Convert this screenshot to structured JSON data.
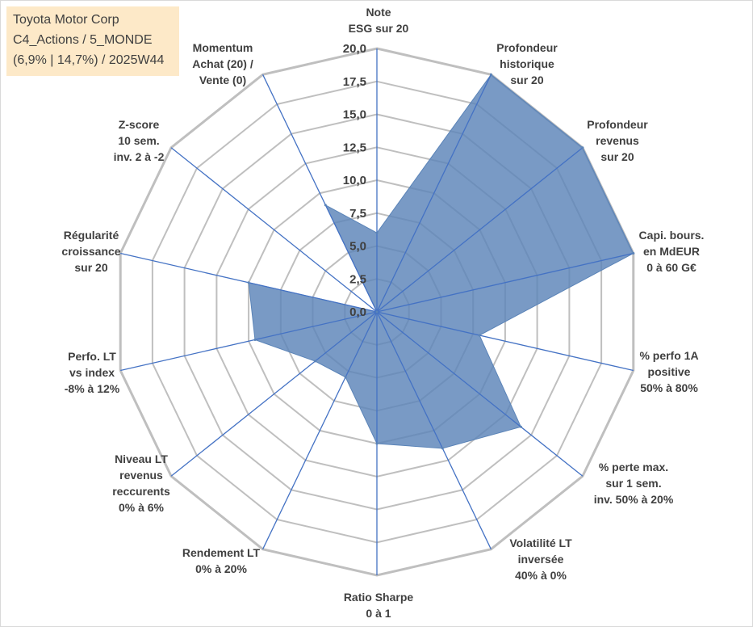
{
  "info": {
    "line1": "Toyota Motor Corp",
    "line2": "C4_Actions / 5_MONDE",
    "line3": "(6,9% | 14,7%) / 2025W44"
  },
  "colors": {
    "fill": "#5b84b8",
    "spoke": "#4472c4",
    "ring": "#bfbfbf",
    "text": "#404040",
    "info_bg": "#fde9c8"
  },
  "chart_data": {
    "type": "radar",
    "rmin": 0,
    "rmax": 20,
    "ticks": [
      "0,0",
      "2,5",
      "5,0",
      "7,5",
      "10,0",
      "12,5",
      "15,0",
      "17,5",
      "20,0"
    ],
    "axes": [
      {
        "lines": [
          "Note",
          "ESG sur 20"
        ],
        "value": 6.0
      },
      {
        "lines": [
          "Profondeur",
          "historique",
          "sur 20"
        ],
        "value": 20.0
      },
      {
        "lines": [
          "Profondeur",
          "revenus",
          "sur 20"
        ],
        "value": 20.0
      },
      {
        "lines": [
          "Capi. bours.",
          "en MdEUR",
          "0 à 60 G€"
        ],
        "value": 20.0
      },
      {
        "lines": [
          "% perfo 1A",
          "positive",
          "50% à 80%"
        ],
        "value": 8.0
      },
      {
        "lines": [
          "% perte max.",
          "sur 1 sem.",
          "inv. 50% à 20%"
        ],
        "value": 14.0
      },
      {
        "lines": [
          "Volatilité LT",
          "inversée",
          "40% à 0%"
        ],
        "value": 11.5
      },
      {
        "lines": [
          "Ratio Sharpe",
          "0 à 1"
        ],
        "value": 10.0
      },
      {
        "lines": [
          "Rendement LT",
          "0% à 20%"
        ],
        "value": 5.5
      },
      {
        "lines": [
          "Niveau LT",
          "revenus",
          "reccurents",
          "0% à 6%"
        ],
        "value": 6.0
      },
      {
        "lines": [
          "Perfo. LT",
          "vs index",
          "-8% à 12%"
        ],
        "value": 9.5
      },
      {
        "lines": [
          "Régularité",
          "croissance",
          "sur 20"
        ],
        "value": 10.0
      },
      {
        "lines": [
          "Z-score",
          "10 sem.",
          "inv. 2 à -2"
        ],
        "value": 0.0
      },
      {
        "lines": [
          "Momentum",
          "Achat (20) /",
          "Vente (0)"
        ],
        "value": 9.0
      }
    ]
  }
}
